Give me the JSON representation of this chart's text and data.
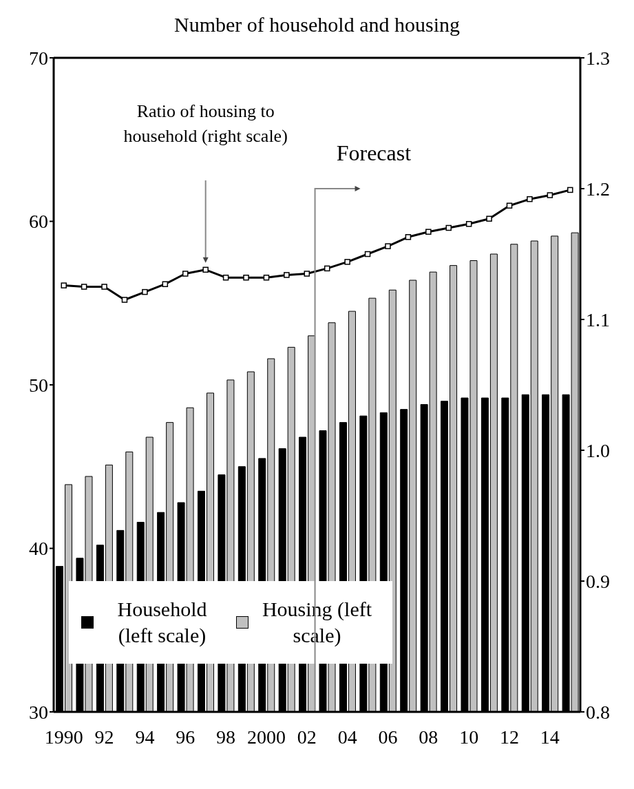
{
  "chart_data": {
    "type": "bar",
    "title": "Number of household and housing",
    "categories": [
      "1990",
      null,
      "92",
      null,
      "94",
      null,
      "96",
      null,
      "98",
      null,
      "2000",
      null,
      "02",
      null,
      "04",
      null,
      "06",
      null,
      "08",
      null,
      "10",
      null,
      "12",
      null,
      "14",
      null
    ],
    "series": [
      {
        "name": "Household (left scale)",
        "color": "#000000",
        "values": [
          38.9,
          39.4,
          40.2,
          41.1,
          41.6,
          42.2,
          42.8,
          43.5,
          44.5,
          45.0,
          45.5,
          46.1,
          46.8,
          47.2,
          47.7,
          48.1,
          48.3,
          48.5,
          48.8,
          49.0,
          49.2,
          49.2,
          49.2,
          49.4,
          49.4,
          49.4
        ]
      },
      {
        "name": "Housing (left scale)",
        "color": "#c0c0c0",
        "values": [
          43.9,
          44.4,
          45.1,
          45.9,
          46.8,
          47.7,
          48.6,
          49.5,
          50.3,
          50.8,
          51.6,
          52.3,
          53.0,
          53.8,
          54.5,
          55.3,
          55.8,
          56.4,
          56.9,
          57.3,
          57.6,
          58.0,
          58.6,
          58.8,
          59.1,
          59.3
        ]
      },
      {
        "type": "line",
        "axis": "y2",
        "color": "#000000",
        "marker": "square",
        "values": [
          1.126,
          1.125,
          1.125,
          1.115,
          1.121,
          1.127,
          1.135,
          1.138,
          1.132,
          1.132,
          1.132,
          1.134,
          1.135,
          1.139,
          1.144,
          1.15,
          1.156,
          1.163,
          1.167,
          1.17,
          1.173,
          1.177,
          1.187,
          1.192,
          1.195,
          1.199
        ]
      }
    ],
    "ylim": [
      30,
      70
    ],
    "yticks": [
      30,
      40,
      50,
      60,
      70
    ],
    "y2lim": [
      0.8,
      1.3
    ],
    "y2ticks": [
      0.8,
      0.9,
      {
        "value": 1,
        "label": "1.0"
      },
      1.1,
      1.2,
      1.3
    ],
    "annotations": [
      "Ratio of housing to household (right scale)",
      "Forecast"
    ],
    "legend": "bottom left",
    "line_style": "solid"
  }
}
